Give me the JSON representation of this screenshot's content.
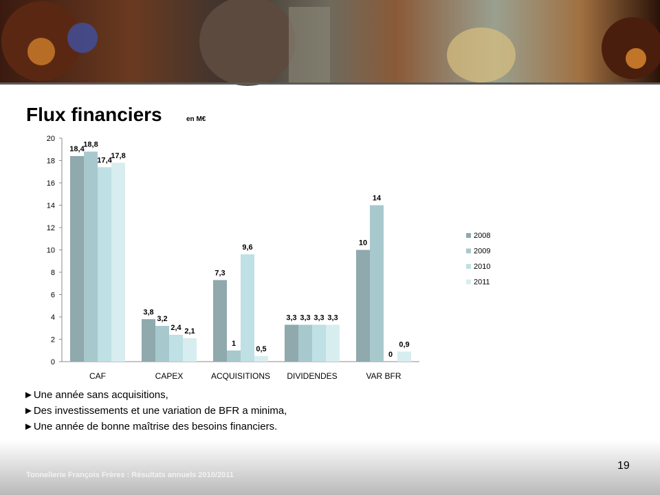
{
  "slide": {
    "title": "Flux financiers",
    "unit": "en M€",
    "bullets": [
      "►Une année sans acquisitions,",
      "►Des investissements et une variation de BFR a minima,",
      "►Une année de bonne maîtrise des besoins financiers."
    ],
    "page_number": "19",
    "footer": "Tonnellerie François Frères : Résultats annuels 2010/2011"
  },
  "chart_data": {
    "type": "bar",
    "categories": [
      "CAF",
      "CAPEX",
      "ACQUISITIONS",
      "DIVIDENDES",
      "VAR BFR"
    ],
    "series": [
      {
        "name": "2008",
        "color": "#8fa9ad",
        "values": [
          18.4,
          3.8,
          7.3,
          3.3,
          10
        ],
        "value_labels": [
          "18,4",
          "3,8",
          "7,3",
          "3,3",
          "10"
        ]
      },
      {
        "name": "2009",
        "color": "#a7c9cd",
        "values": [
          18.8,
          3.2,
          1,
          3.3,
          14
        ],
        "value_labels": [
          "18,8",
          "3,2",
          "1",
          "3,3",
          "14"
        ]
      },
      {
        "name": "2010",
        "color": "#bfe0e4",
        "values": [
          17.4,
          2.4,
          9.6,
          3.3,
          0
        ],
        "value_labels": [
          "17,4",
          "2,4",
          "9,6",
          "3,3",
          "0"
        ]
      },
      {
        "name": "2011",
        "color": "#d8edef",
        "values": [
          17.8,
          2.1,
          0.5,
          3.3,
          0.9
        ],
        "value_labels": [
          "17,8",
          "2,1",
          "0,5",
          "3,3",
          "0,9"
        ]
      }
    ],
    "ylim": [
      0,
      20
    ],
    "yticks": [
      0,
      2,
      4,
      6,
      8,
      10,
      12,
      14,
      16,
      18,
      20
    ],
    "grid": false,
    "legend": "right"
  }
}
